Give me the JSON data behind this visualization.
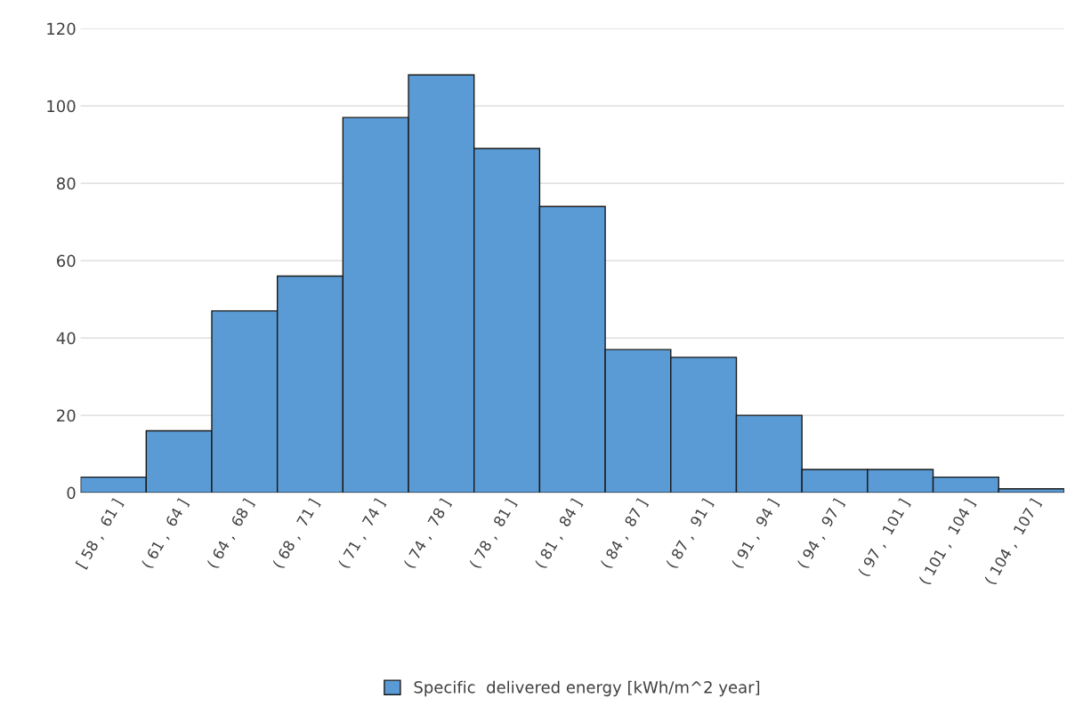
{
  "chart_data": {
    "type": "bar",
    "categories": [
      "[ 58 ,  61 ]",
      "( 61 ,  64 ]",
      "( 64 ,  68 ]",
      "( 68 ,  71 ]",
      "( 71 ,  74 ]",
      "( 74 ,  78 ]",
      "( 78 ,  81 ]",
      "( 81 ,  84 ]",
      "( 84 ,  87 ]",
      "( 87 ,  91 ]",
      "( 91 ,  94 ]",
      "( 94 ,  97 ]",
      "( 97 ,  101 ]",
      "( 101 ,  104 ]",
      "( 104 ,  107 ]"
    ],
    "series": [
      {
        "name": "Specific  delivered energy [kWh/m^2 year]",
        "color": "#5b9bd5",
        "values": [
          4,
          16,
          47,
          56,
          97,
          108,
          89,
          74,
          37,
          35,
          20,
          6,
          6,
          4,
          1
        ]
      }
    ],
    "ylim": [
      0,
      120
    ],
    "yticks": [
      0,
      20,
      40,
      60,
      80,
      100,
      120
    ],
    "grid": "y",
    "legend": "bottom"
  }
}
